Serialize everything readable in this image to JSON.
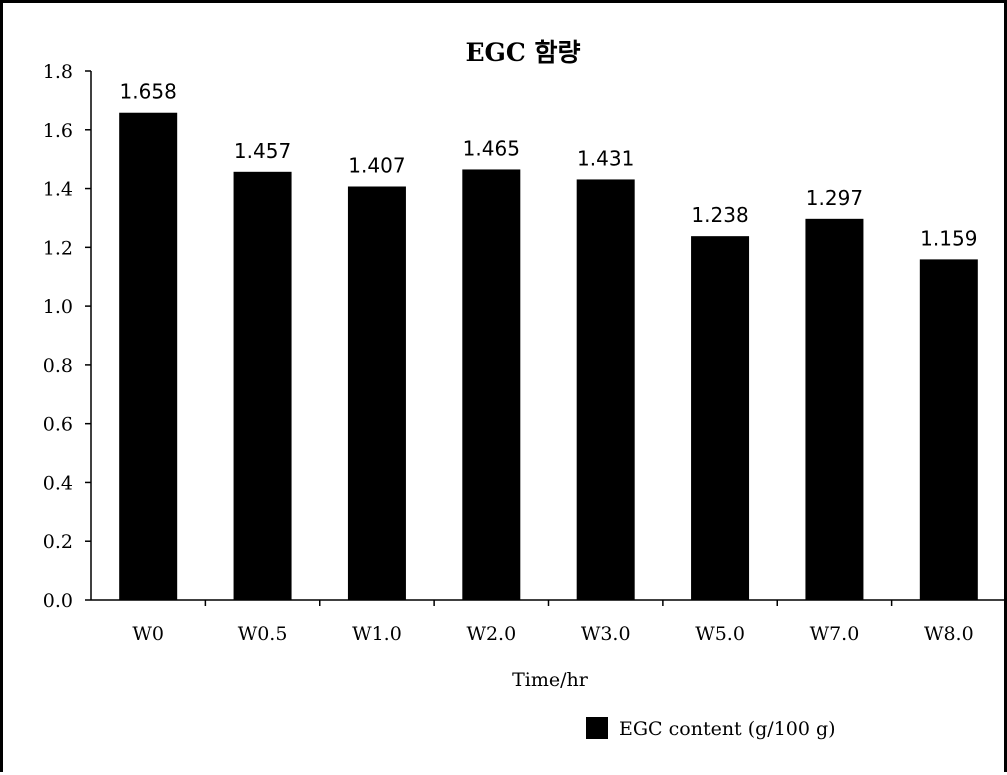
{
  "chart_data": {
    "type": "bar",
    "title": "EGC 함량",
    "xlabel": "Time/hr",
    "ylabel": "",
    "categories": [
      "W0",
      "W0.5",
      "W1.0",
      "W2.0",
      "W3.0",
      "W5.0",
      "W7.0",
      "W8.0"
    ],
    "series": [
      {
        "name": "EGC content (g/100 g)",
        "values": [
          1.658,
          1.457,
          1.407,
          1.465,
          1.431,
          1.238,
          1.297,
          1.159
        ]
      }
    ],
    "data_labels": [
      "1.658",
      "1.457",
      "1.407",
      "1.465",
      "1.431",
      "1.238",
      "1.297",
      "1.159"
    ],
    "ylim": [
      0,
      1.8
    ],
    "yticks": [
      "0.0",
      "0.2",
      "0.4",
      "0.6",
      "0.8",
      "1.0",
      "1.2",
      "1.4",
      "1.6",
      "1.8"
    ],
    "grid": false,
    "legend_position": "bottom-right",
    "bar_color": "#000000"
  }
}
